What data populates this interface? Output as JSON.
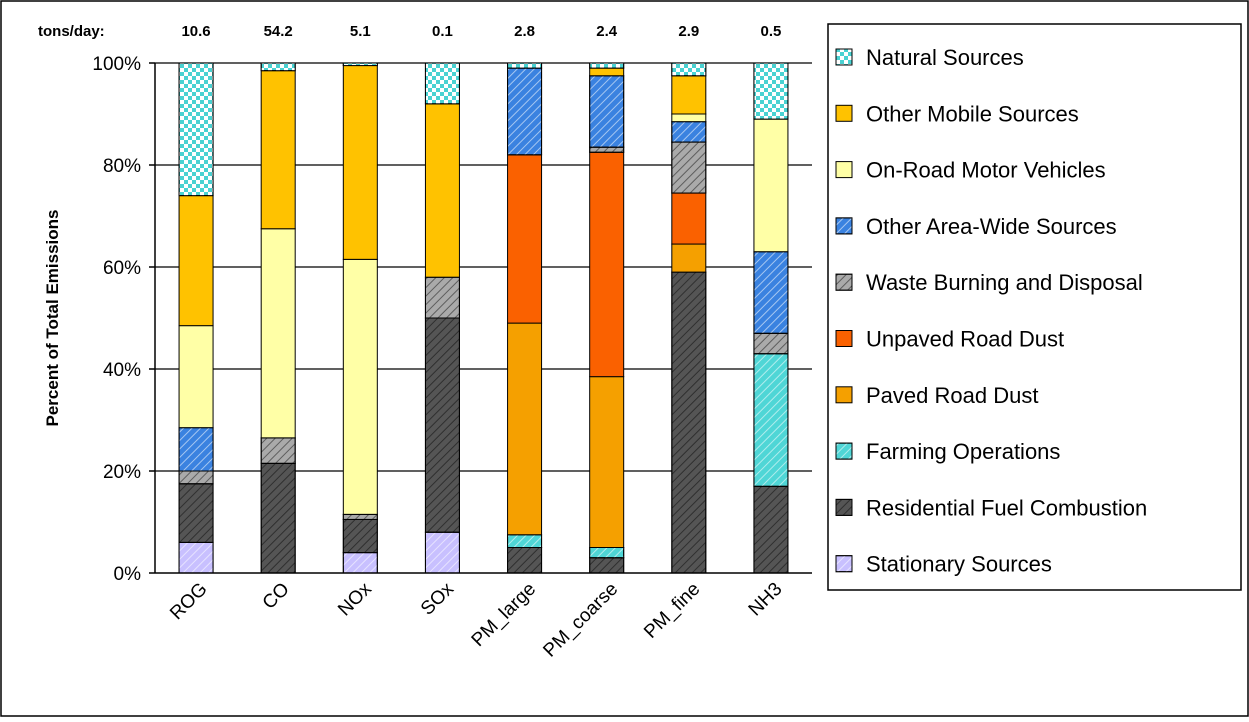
{
  "chart_data": {
    "type": "bar",
    "stacked": true,
    "categories": [
      "ROG",
      "CO",
      "NOx",
      "SOx",
      "PM_large",
      "PM_coarse",
      "PM_fine",
      "NH3"
    ],
    "top_label_prefix": "tons/day:",
    "tons_per_day": [
      "10.6",
      "54.2",
      "5.1",
      "0.1",
      "2.8",
      "2.4",
      "2.9",
      "0.5"
    ],
    "ylabel": "Percent of Total Emissions",
    "ylim": [
      0,
      100
    ],
    "yticks": [
      0,
      20,
      40,
      60,
      80,
      100
    ],
    "ytick_labels": [
      "0%",
      "20%",
      "40%",
      "60%",
      "80%",
      "100%"
    ],
    "grid": "horizontal",
    "legend_position": "right",
    "series": [
      {
        "name": "Stationary Sources",
        "color": "#c8c0ff",
        "pattern": "diag-light",
        "values": [
          6,
          0,
          4,
          8,
          0,
          0,
          0,
          0
        ]
      },
      {
        "name": "Residential Fuel Combustion",
        "color": "#555555",
        "pattern": "diag-dark",
        "values": [
          11.5,
          21.5,
          6.5,
          42,
          5,
          3,
          59,
          17
        ]
      },
      {
        "name": "Farming Operations",
        "color": "#4fd6d6",
        "pattern": "diag-light",
        "values": [
          0,
          0,
          0,
          0,
          2.5,
          2,
          0,
          26
        ]
      },
      {
        "name": "Paved Road Dust",
        "color": "#f5a000",
        "pattern": "none",
        "values": [
          0,
          0,
          0,
          0,
          41.5,
          33.5,
          5.5,
          0
        ]
      },
      {
        "name": "Unpaved Road Dust",
        "color": "#fa6100",
        "pattern": "none",
        "values": [
          0,
          0,
          0,
          0,
          33,
          44,
          10,
          0
        ]
      },
      {
        "name": "Waste Burning and Disposal",
        "color": "#aaaaaa",
        "pattern": "diag-dark",
        "values": [
          2.5,
          5,
          1,
          8,
          0,
          1,
          10,
          4
        ]
      },
      {
        "name": "Other Area-Wide Sources",
        "color": "#3a82e0",
        "pattern": "diag-light",
        "values": [
          8.5,
          0,
          0,
          0,
          17,
          14,
          4,
          16
        ]
      },
      {
        "name": "On-Road Motor Vehicles",
        "color": "#ffffa6",
        "pattern": "none",
        "values": [
          20,
          41,
          50,
          0,
          0,
          0,
          1.5,
          26
        ]
      },
      {
        "name": "Other Mobile Sources",
        "color": "#ffc200",
        "pattern": "none",
        "values": [
          25.5,
          31,
          38,
          34,
          0,
          1.5,
          7.5,
          0
        ]
      },
      {
        "name": "Natural Sources",
        "color": "#49d2d2",
        "pattern": "checker",
        "values": [
          26,
          1.5,
          0.5,
          8,
          1,
          1,
          2.5,
          11
        ]
      }
    ]
  }
}
